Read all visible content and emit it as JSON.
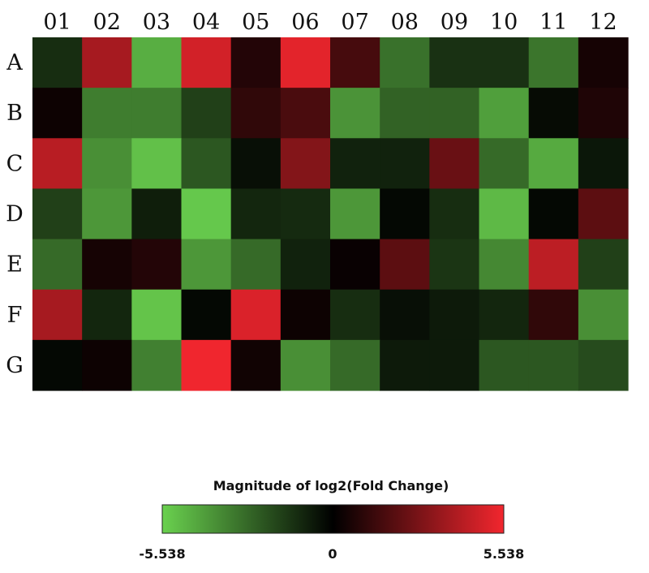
{
  "chart_data": {
    "type": "heatmap",
    "columns": [
      "01",
      "02",
      "03",
      "04",
      "05",
      "06",
      "07",
      "08",
      "09",
      "10",
      "11",
      "12"
    ],
    "rows": [
      "A",
      "B",
      "C",
      "D",
      "E",
      "F",
      "G"
    ],
    "values": [
      [
        -1.2,
        3.8,
        -4.6,
        4.8,
        0.8,
        5.2,
        1.6,
        -3.0,
        -1.3,
        -1.3,
        -3.1,
        0.5
      ],
      [
        0.3,
        -3.3,
        -3.3,
        -1.7,
        1.1,
        1.7,
        -3.9,
        -2.6,
        -2.6,
        -4.2,
        -0.3,
        0.7
      ],
      [
        4.2,
        -3.8,
        -5.1,
        -2.3,
        -0.4,
        3.0,
        -0.9,
        -0.9,
        2.4,
        -2.8,
        -4.5,
        -0.6
      ],
      [
        -1.7,
        -4.0,
        -0.8,
        -5.3,
        -1.0,
        -1.1,
        -4.0,
        -0.2,
        -1.2,
        -4.9,
        -0.2,
        2.1
      ],
      [
        -2.8,
        0.5,
        0.8,
        -4.0,
        -2.8,
        -0.9,
        0.2,
        2.1,
        -1.4,
        -3.6,
        4.3,
        -1.7
      ],
      [
        3.8,
        -1.0,
        -5.2,
        -0.2,
        5.0,
        0.3,
        -1.2,
        -0.4,
        -0.7,
        -1.0,
        1.1,
        -3.8
      ],
      [
        -0.2,
        0.3,
        -3.4,
        5.5,
        0.4,
        -3.8,
        -2.8,
        -0.7,
        -0.7,
        -2.3,
        -2.3,
        -2.0
      ]
    ],
    "color_scale": {
      "min": -5.538,
      "mid": 0,
      "max": 5.538,
      "min_color": "#6ad14f",
      "mid_color": "#000000",
      "max_color": "#f2262e"
    },
    "legend": {
      "title": "Magnitude of log2(Fold Change)",
      "min_label": "-5.538",
      "mid_label": "0",
      "max_label": "5.538",
      "placement": "bottom-center"
    }
  }
}
